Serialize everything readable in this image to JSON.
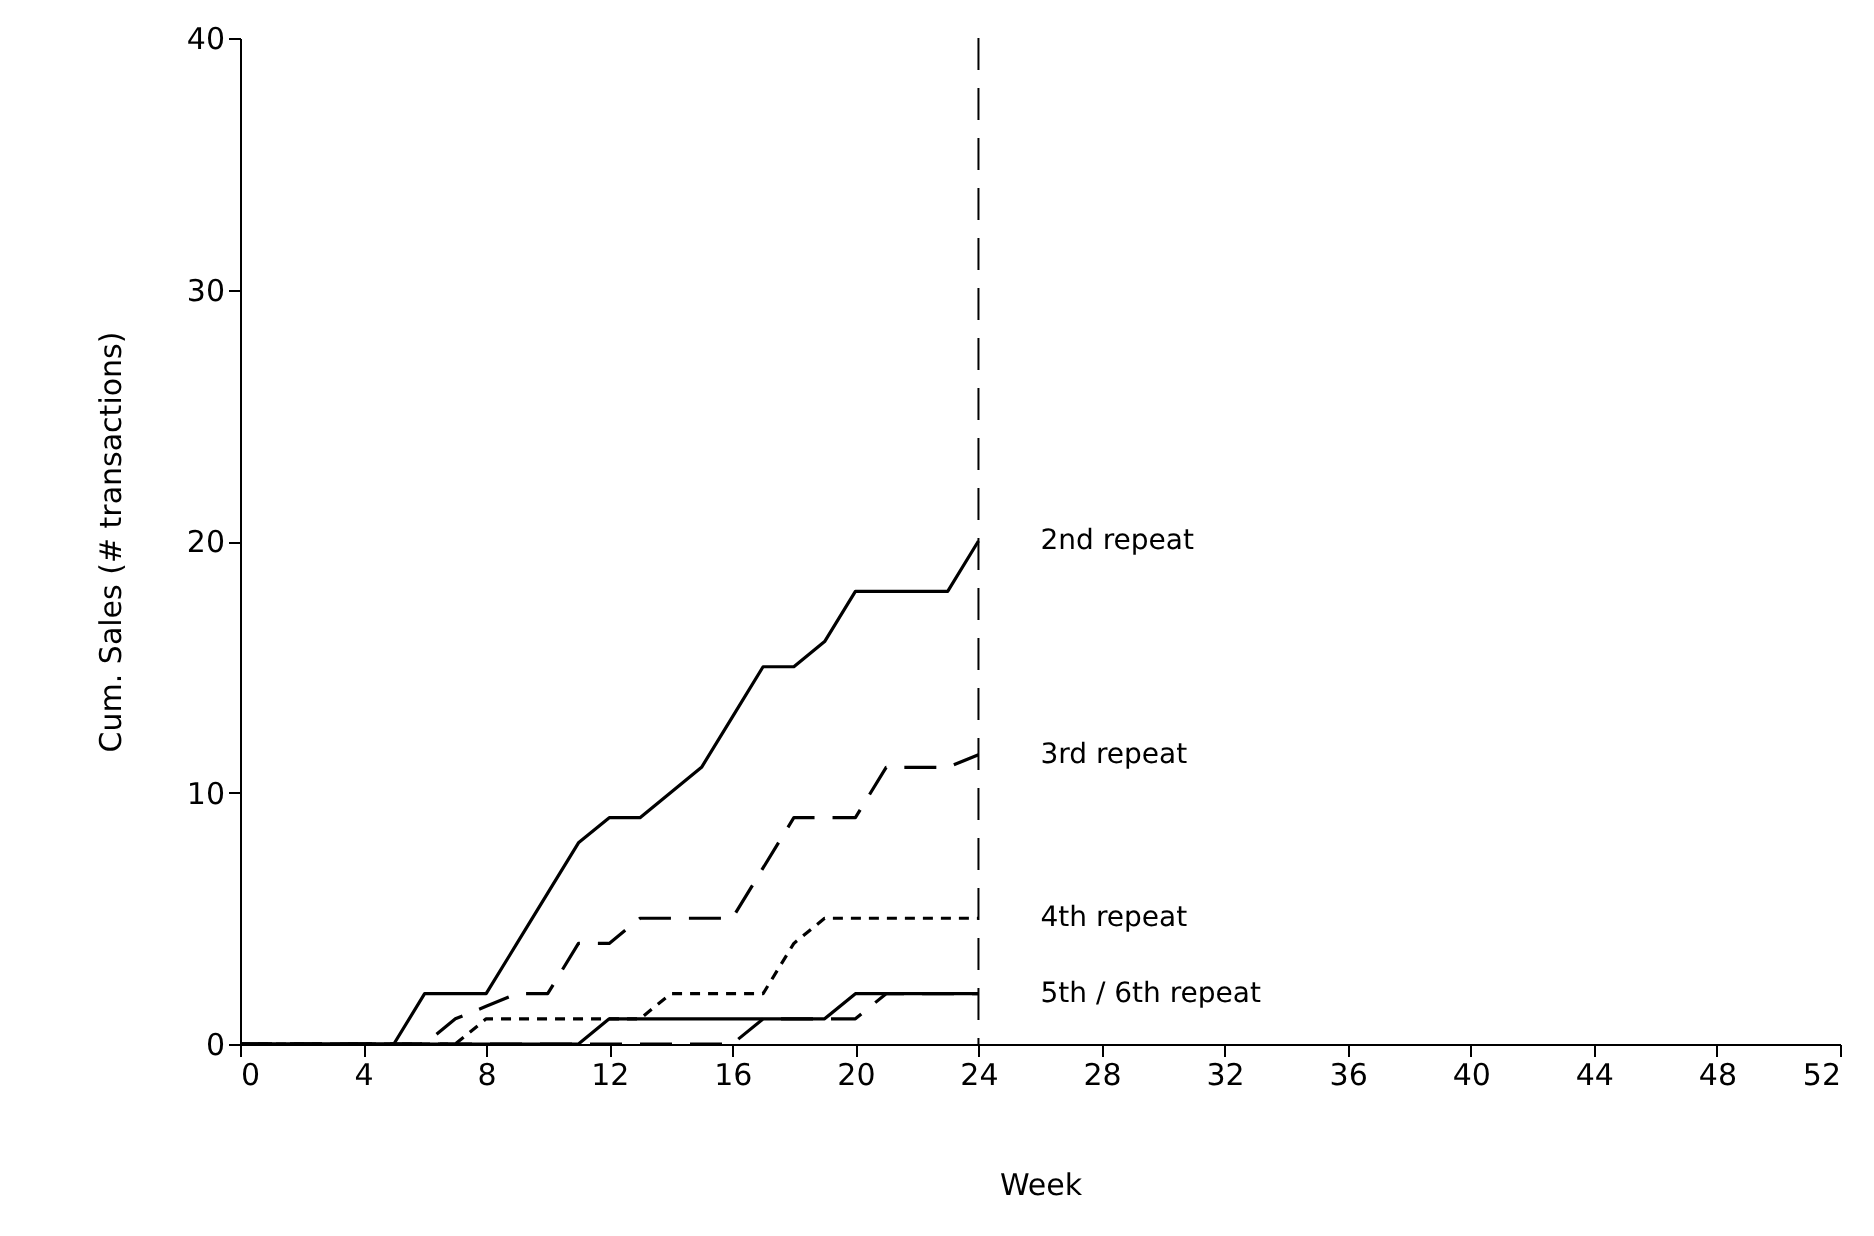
{
  "chart_data": {
    "type": "line",
    "xlabel": "Week",
    "ylabel": "Cum. Sales (# transactions)",
    "xlim": [
      0,
      52
    ],
    "ylim": [
      0,
      40
    ],
    "xticks": [
      0,
      4,
      8,
      12,
      16,
      20,
      24,
      28,
      32,
      36,
      40,
      44,
      48,
      52
    ],
    "yticks": [
      0,
      10,
      20,
      30,
      40
    ],
    "grid": false,
    "marker": "none",
    "series": [
      {
        "name": "2nd repeat",
        "color": "#000000",
        "line_style": "solid",
        "x": [
          0,
          5,
          6,
          7,
          8,
          9,
          10,
          11,
          12,
          13,
          14,
          15,
          16,
          17,
          18,
          19,
          20,
          21,
          22,
          23,
          24
        ],
        "values": [
          0,
          0,
          2,
          2,
          2,
          4,
          6,
          8,
          9,
          9,
          10,
          11,
          13,
          15,
          15,
          16,
          18,
          18,
          18,
          18,
          20
        ]
      },
      {
        "name": "3rd repeat",
        "color": "#000000",
        "line_style": "dashed",
        "x": [
          0,
          6,
          7,
          8,
          9,
          10,
          11,
          12,
          13,
          14,
          15,
          16,
          17,
          18,
          19,
          20,
          21,
          22,
          23,
          24
        ],
        "values": [
          0,
          0,
          1,
          1.5,
          2,
          2,
          4,
          4,
          5,
          5,
          5,
          5,
          7,
          9,
          9,
          9,
          11,
          11,
          11,
          11.5
        ]
      },
      {
        "name": "4th repeat",
        "color": "#000000",
        "line_style": "dotted",
        "x": [
          0,
          7,
          8,
          9,
          10,
          11,
          12,
          13,
          14,
          15,
          16,
          17,
          18,
          19,
          20,
          21,
          22,
          23,
          24
        ],
        "values": [
          0,
          0,
          1,
          1,
          1,
          1,
          1,
          1,
          2,
          2,
          2,
          2,
          4,
          5,
          5,
          5,
          5,
          5,
          5
        ]
      },
      {
        "color": "#000000",
        "line_style": "solid",
        "x": [
          0,
          11,
          12,
          13,
          14,
          15,
          16,
          17,
          18,
          19,
          20,
          21,
          22,
          23,
          24
        ],
        "values": [
          0,
          0,
          1,
          1,
          1,
          1,
          1,
          1,
          1,
          1,
          2,
          2,
          2,
          2,
          2
        ]
      },
      {
        "color": "#000000",
        "line_style": "dashed",
        "x": [
          0,
          16,
          17,
          18,
          19,
          20,
          21,
          22,
          23,
          24
        ],
        "values": [
          0,
          0,
          1,
          1,
          1,
          1,
          2,
          2,
          2,
          2
        ]
      }
    ],
    "ref_lines": [
      {
        "axis": "x",
        "value": 24,
        "line_style": "dashed",
        "color": "#000000"
      }
    ],
    "annotations": [
      "5th / 6th repeat"
    ]
  }
}
